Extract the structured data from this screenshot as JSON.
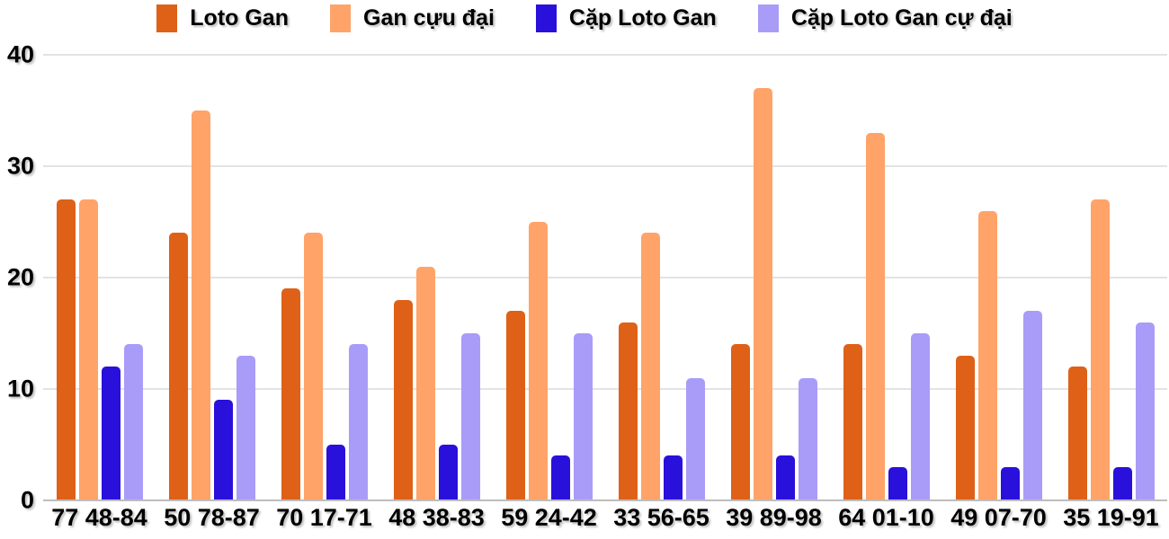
{
  "chart_data": {
    "type": "bar",
    "title": "",
    "xlabel": "",
    "ylabel": "",
    "categories": [
      "77 48-84",
      "50 78-87",
      "70 17-71",
      "48 38-83",
      "59 24-42",
      "33 56-65",
      "39 89-98",
      "64 01-10",
      "49 07-70",
      "35 19-91"
    ],
    "series": [
      {
        "name": "Loto Gan",
        "color": "#DE6117",
        "values": [
          27,
          24,
          19,
          18,
          17,
          16,
          14,
          14,
          13,
          12
        ]
      },
      {
        "name": "Gan cựu đại",
        "color": "#FFA368",
        "values": [
          27,
          35,
          24,
          21,
          25,
          24,
          37,
          33,
          26,
          27
        ]
      },
      {
        "name": "Cặp Loto Gan",
        "color": "#2A10DB",
        "values": [
          12,
          9,
          5,
          5,
          4,
          4,
          4,
          3,
          3,
          3
        ]
      },
      {
        "name": "Cặp Loto Gan cự đại",
        "color": "#A89CF8",
        "values": [
          14,
          13,
          14,
          15,
          15,
          11,
          11,
          15,
          17,
          16
        ]
      }
    ],
    "ylim": [
      0,
      40
    ],
    "yticks": [
      0,
      10,
      20,
      30,
      40
    ],
    "grid": true,
    "legend_position": "top",
    "grid_color": "#E3E3E3",
    "baseline_color": "#BDBDBD",
    "text_color": "#000000",
    "background_color": "#FFFFFF"
  }
}
